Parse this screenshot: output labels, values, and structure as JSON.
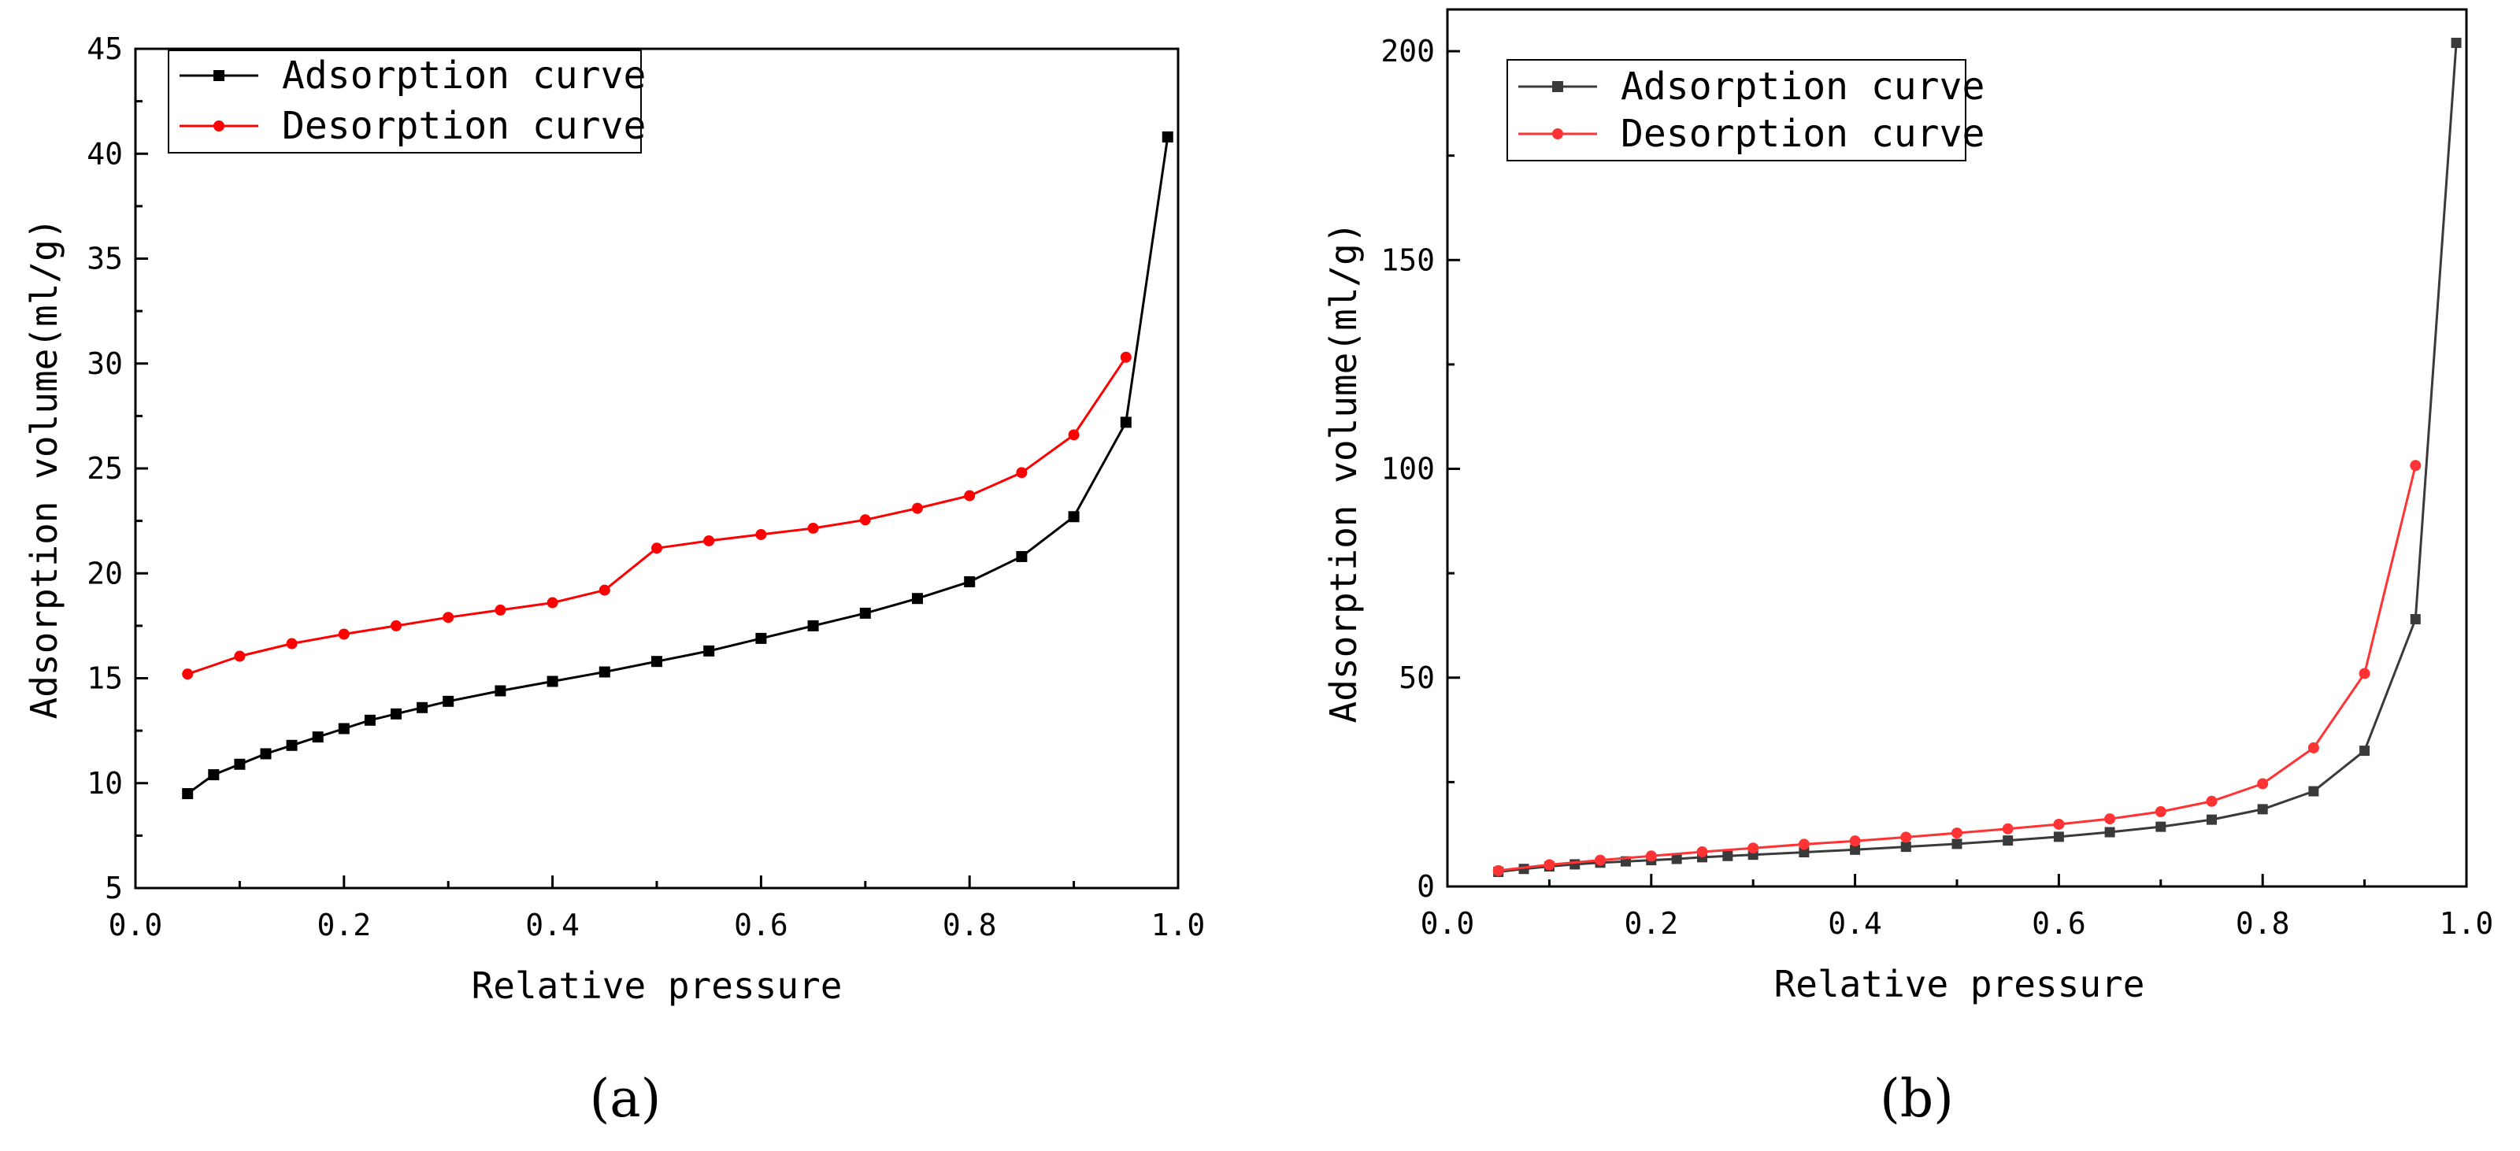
{
  "chart_data": [
    {
      "type": "line",
      "panel_label": "(a)",
      "xlabel": "Relative pressure",
      "ylabel": "Adsorption volume(ml/g)",
      "xlim": [
        0.0,
        1.0
      ],
      "ylim": [
        5,
        45
      ],
      "x_ticks": [
        0.0,
        0.2,
        0.4,
        0.6,
        0.8,
        1.0
      ],
      "x_tick_labels": [
        "0.0",
        "0.2",
        "0.4",
        "0.6",
        "0.8",
        "1.0"
      ],
      "y_ticks": [
        5,
        10,
        15,
        20,
        25,
        30,
        35,
        40,
        45
      ],
      "y_tick_labels": [
        "5",
        "10",
        "15",
        "20",
        "25",
        "30",
        "35",
        "40",
        "45"
      ],
      "legend_position": "top-left",
      "series": [
        {
          "name": "Adsorption curve",
          "color": "#000000",
          "marker": "square",
          "x": [
            0.05,
            0.075,
            0.1,
            0.125,
            0.15,
            0.175,
            0.2,
            0.225,
            0.25,
            0.275,
            0.3,
            0.35,
            0.4,
            0.45,
            0.5,
            0.55,
            0.6,
            0.65,
            0.7,
            0.75,
            0.8,
            0.85,
            0.9,
            0.95,
            0.99
          ],
          "y": [
            9.5,
            10.4,
            10.9,
            11.4,
            11.8,
            12.2,
            12.6,
            13.0,
            13.3,
            13.6,
            13.9,
            14.4,
            14.85,
            15.3,
            15.8,
            16.3,
            16.9,
            17.5,
            18.1,
            18.8,
            19.6,
            20.8,
            22.7,
            27.2,
            40.8
          ]
        },
        {
          "name": "Desorption curve",
          "color": "#ff0000",
          "marker": "circle",
          "x": [
            0.05,
            0.1,
            0.15,
            0.2,
            0.25,
            0.3,
            0.35,
            0.4,
            0.45,
            0.5,
            0.55,
            0.6,
            0.65,
            0.7,
            0.75,
            0.8,
            0.85,
            0.9,
            0.95
          ],
          "y": [
            15.2,
            16.05,
            16.65,
            17.1,
            17.5,
            17.9,
            18.25,
            18.6,
            19.2,
            21.2,
            21.55,
            21.85,
            22.15,
            22.55,
            23.1,
            23.7,
            24.8,
            26.6,
            30.3
          ]
        }
      ]
    },
    {
      "type": "line",
      "panel_label": "(b)",
      "xlabel": "Relative pressure",
      "ylabel": "Adsorption volume(ml/g)",
      "xlim": [
        0.0,
        1.0
      ],
      "ylim": [
        0,
        210
      ],
      "x_ticks": [
        0.0,
        0.2,
        0.4,
        0.6,
        0.8,
        1.0
      ],
      "x_tick_labels": [
        "0.0",
        "0.2",
        "0.4",
        "0.6",
        "0.8",
        "1.0"
      ],
      "y_ticks": [
        0,
        50,
        100,
        150,
        200
      ],
      "y_tick_labels": [
        "0",
        "50",
        "100",
        "150",
        "200"
      ],
      "legend_position": "top-left",
      "series": [
        {
          "name": "Adsorption curve",
          "color": "#3a3a3a",
          "marker": "square",
          "x": [
            0.05,
            0.075,
            0.1,
            0.125,
            0.15,
            0.175,
            0.2,
            0.225,
            0.25,
            0.275,
            0.3,
            0.35,
            0.4,
            0.45,
            0.5,
            0.55,
            0.6,
            0.65,
            0.7,
            0.75,
            0.8,
            0.85,
            0.9,
            0.95,
            0.99
          ],
          "y": [
            3.5,
            4.2,
            4.8,
            5.3,
            5.7,
            6.0,
            6.3,
            6.6,
            7.0,
            7.3,
            7.6,
            8.2,
            8.8,
            9.5,
            10.2,
            11.0,
            11.9,
            13.0,
            14.3,
            16.0,
            18.5,
            22.8,
            32.5,
            64.0,
            202.0
          ]
        },
        {
          "name": "Desorption curve",
          "color": "#ff3333",
          "marker": "circle",
          "x": [
            0.05,
            0.1,
            0.15,
            0.2,
            0.25,
            0.3,
            0.35,
            0.4,
            0.45,
            0.5,
            0.55,
            0.6,
            0.65,
            0.7,
            0.75,
            0.8,
            0.85,
            0.9,
            0.95
          ],
          "y": [
            3.8,
            5.2,
            6.3,
            7.3,
            8.3,
            9.2,
            10.1,
            10.9,
            11.8,
            12.8,
            13.8,
            14.9,
            16.2,
            17.9,
            20.4,
            24.6,
            33.2,
            51.0,
            100.8
          ]
        }
      ]
    }
  ]
}
